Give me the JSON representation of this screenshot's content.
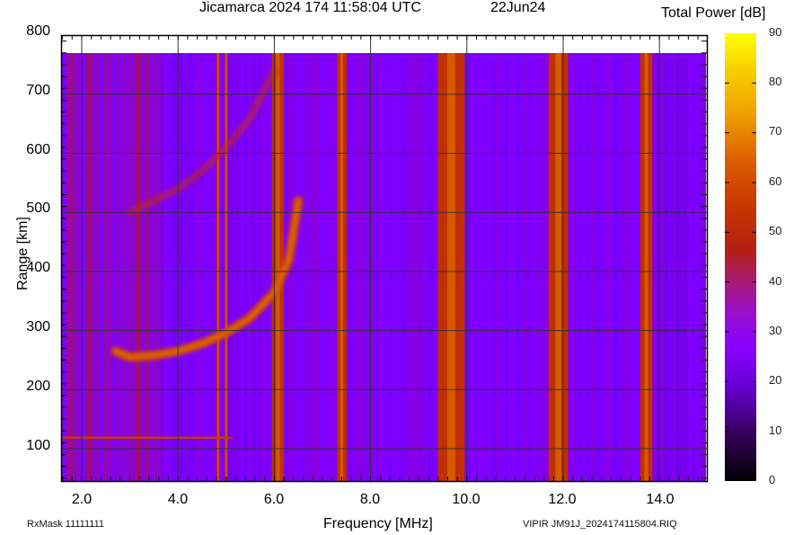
{
  "header": {
    "title": "Jicamarca 2024 174 11:58:04 UTC",
    "date": "22Jun24",
    "colorbar_title": "Total Power [dB]"
  },
  "footer": {
    "left": "RxMask 11111111",
    "right": "VIPIR  JM91J_2024174115804.RIQ"
  },
  "colors": {
    "background_low": "#8000ff",
    "band_red": "#c03000",
    "band_orange": "#d85a00",
    "grid": "#333333"
  },
  "chart_data": {
    "type": "heatmap",
    "title": "Jicamarca 2024 174 11:58:04 UTC   22Jun24",
    "xlabel": "Frequency [MHz]",
    "ylabel": "Range [km]",
    "xlim": [
      1.57,
      15.0
    ],
    "ylim": [
      45,
      800
    ],
    "data_ylim": [
      45,
      770
    ],
    "x_ticks": [
      "2.0",
      "4.0",
      "6.0",
      "8.0",
      "10.0",
      "12.0",
      "14.0"
    ],
    "y_ticks": [
      "100",
      "200",
      "300",
      "400",
      "500",
      "600",
      "700",
      "800"
    ],
    "grid": true,
    "colorbar": {
      "label": "Total Power [dB]",
      "range": [
        0,
        90
      ],
      "ticks": [
        "0",
        "10",
        "20",
        "30",
        "40",
        "50",
        "60",
        "70",
        "80",
        "90"
      ],
      "colormap": "black-purple-red-orange-yellow"
    },
    "background_level_db": 30,
    "interference_bands_mhz": [
      {
        "start": 4.8,
        "end": 4.86,
        "level_db": 62
      },
      {
        "start": 4.97,
        "end": 5.02,
        "level_db": 58
      },
      {
        "start": 5.95,
        "end": 6.2,
        "level_db": 55
      },
      {
        "start": 7.3,
        "end": 7.5,
        "level_db": 55
      },
      {
        "start": 9.4,
        "end": 9.95,
        "level_db": 58
      },
      {
        "start": 11.7,
        "end": 12.1,
        "level_db": 58
      },
      {
        "start": 13.6,
        "end": 13.85,
        "level_db": 55
      }
    ],
    "traces": [
      {
        "name": "E-layer echo",
        "freq_mhz": [
          1.7,
          2.4,
          3.0,
          4.0,
          5.0
        ],
        "range_km": [
          120,
          120,
          118,
          117,
          117
        ],
        "level_db": 52
      },
      {
        "name": "F-layer 1st hop",
        "freq_mhz": [
          2.7,
          3.0,
          3.5,
          4.0,
          4.5,
          5.0,
          5.5,
          6.0,
          6.3,
          6.5
        ],
        "range_km": [
          265,
          255,
          258,
          265,
          278,
          296,
          322,
          365,
          420,
          520
        ],
        "level_db": 62
      },
      {
        "name": "F-layer 2nd hop",
        "freq_mhz": [
          3.0,
          3.5,
          4.0,
          4.5,
          5.0,
          5.5,
          6.0
        ],
        "range_km": [
          500,
          520,
          540,
          570,
          610,
          660,
          740
        ],
        "level_db": 45
      }
    ]
  }
}
